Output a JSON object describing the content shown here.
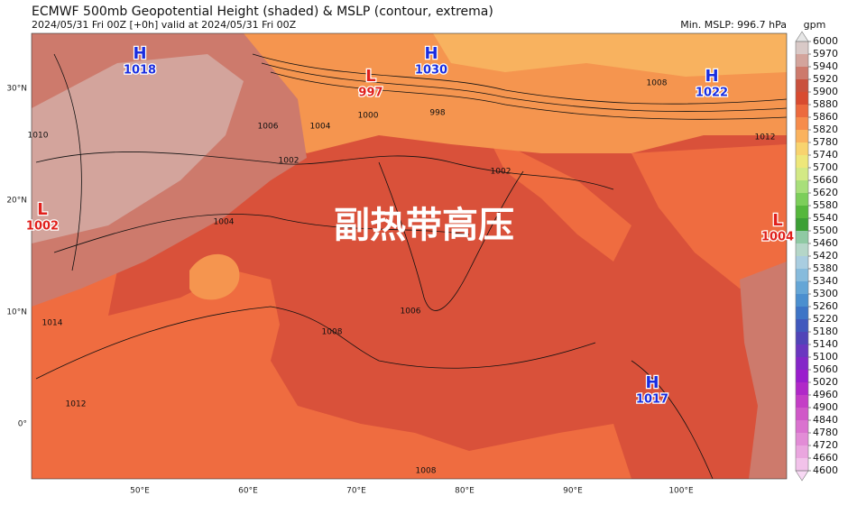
{
  "title": "ECMWF 500mb Geopotential Height (shaded) & MSLP (contour, extrema)",
  "subtitle": "2024/05/31 Fri 00Z [+0h] valid at 2024/05/31 Fri 00Z",
  "min_mslp": "Min. MSLP: 996.7 hPa",
  "annotation": "副热带高压",
  "lat_labels": [
    "30°N",
    "20°N",
    "10°N",
    "0°"
  ],
  "lon_labels": [
    "50°E",
    "60°E",
    "70°E",
    "80°E",
    "90°E",
    "100°E"
  ],
  "centers": [
    {
      "type": "H",
      "value": 1018
    },
    {
      "type": "H",
      "value": 1030
    },
    {
      "type": "L",
      "value": 997
    },
    {
      "type": "H",
      "value": 1022
    },
    {
      "type": "L",
      "value": 1002
    },
    {
      "type": "L",
      "value": 1004
    },
    {
      "type": "H",
      "value": 1017
    }
  ],
  "contour_labels": [
    "1002",
    "1004",
    "1004",
    "1006",
    "1008",
    "1008",
    "1010",
    "1012",
    "1014",
    "998",
    "1000",
    "1002",
    "1006",
    "1012",
    "1008"
  ],
  "colorbar": {
    "unit": "gpm",
    "ticks": [
      6000,
      5970,
      5940,
      5920,
      5900,
      5880,
      5860,
      5820,
      5780,
      5740,
      5700,
      5660,
      5620,
      5580,
      5540,
      5500,
      5460,
      5420,
      5380,
      5340,
      5300,
      5260,
      5220,
      5180,
      5140,
      5100,
      5060,
      5020,
      4960,
      4900,
      4840,
      4780,
      4720,
      4660,
      4600
    ],
    "colors": [
      "#d9c9c7",
      "#d3a49c",
      "#cd7a6c",
      "#c9513d",
      "#d84b30",
      "#ec6a3e",
      "#f68c4c",
      "#fab25e",
      "#f8d36e",
      "#eee77a",
      "#d3e985",
      "#a8df7a",
      "#7cce5a",
      "#55b73c",
      "#3c9f35",
      "#8fc9a3",
      "#b5d6c8",
      "#a9cde0",
      "#87bbdc",
      "#65a6d6",
      "#4b8fcf",
      "#3d74c6",
      "#4058bd",
      "#5044b8",
      "#6a36c0",
      "#8426c8",
      "#9a1dcd",
      "#b028c8",
      "#c43ec6",
      "#d058c8",
      "#da72cf",
      "#e28cd6",
      "#eaa6df",
      "#f2c2ea"
    ],
    "over_color": "#e6e6e6",
    "under_color": "#f8d8f4"
  }
}
